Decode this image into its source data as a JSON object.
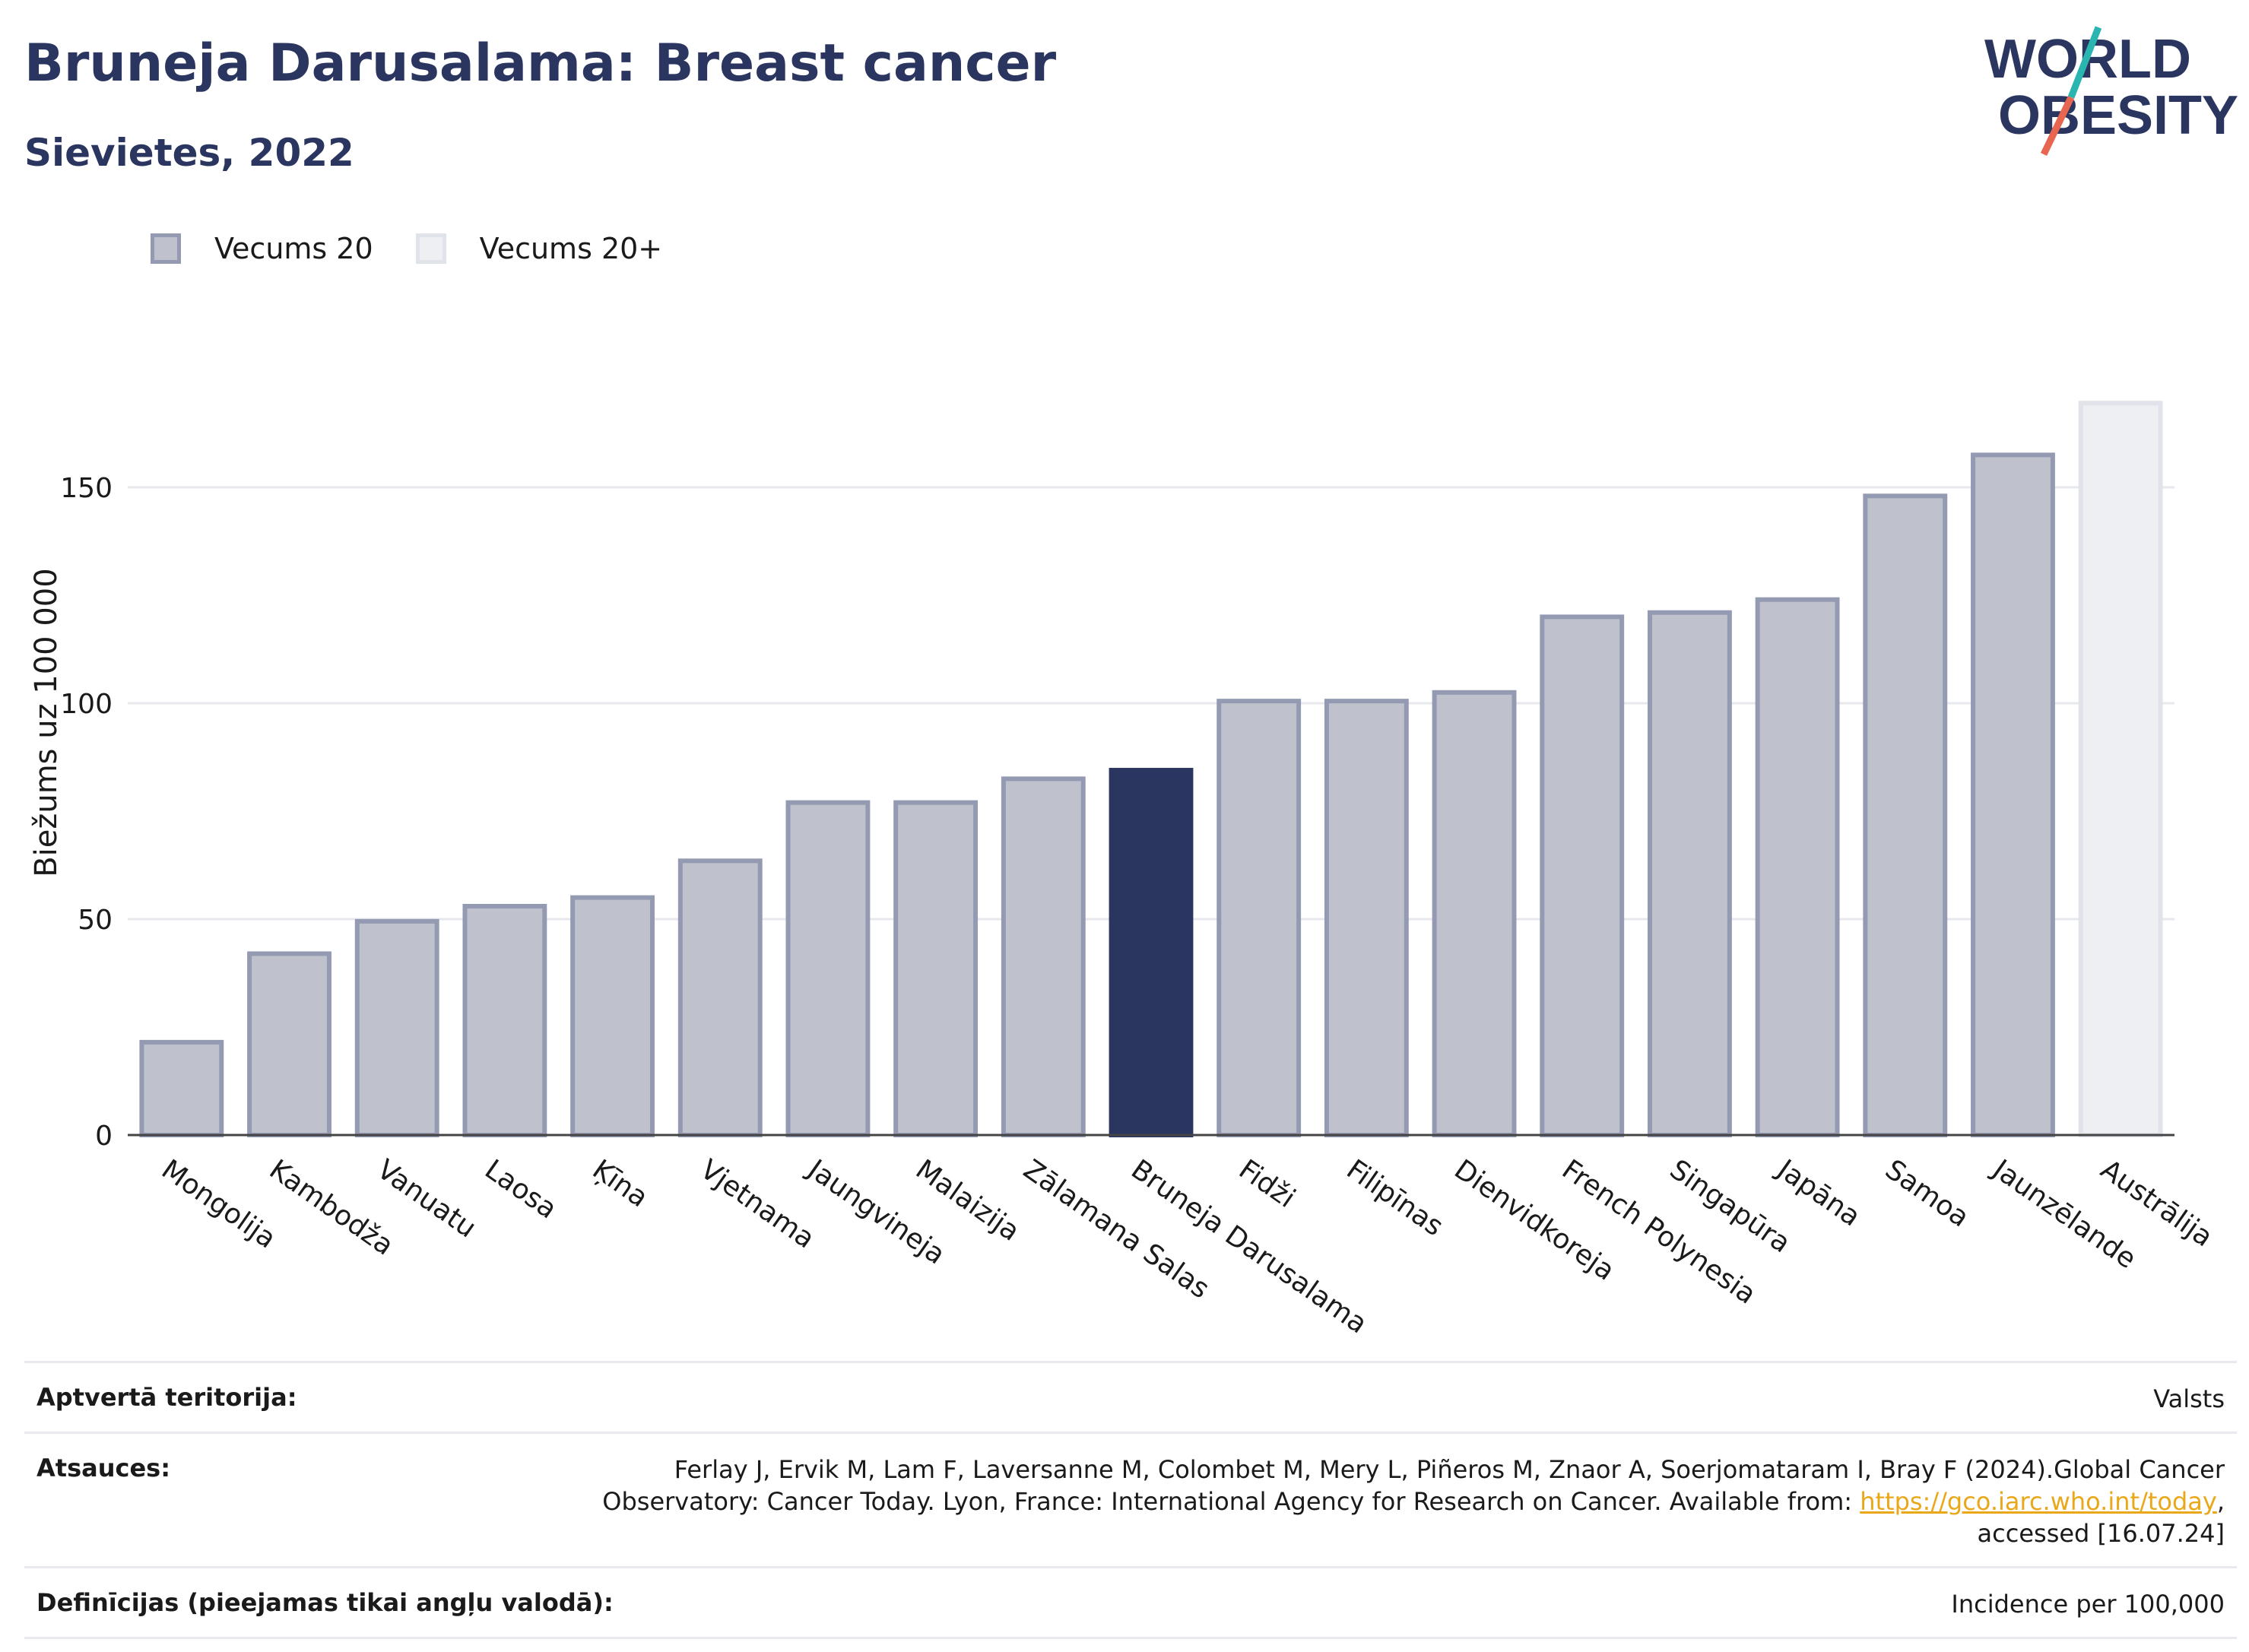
{
  "header": {
    "title": "Bruneja Darusalama: Breast cancer",
    "subtitle": "Sievietes, 2022"
  },
  "logo": {
    "line1": "WORLD",
    "line2": "OBESITY"
  },
  "legend": [
    {
      "label": "Vecums 20"
    },
    {
      "label": "Vecums 20+"
    }
  ],
  "colors": {
    "bar_fill": "#bfc2cd",
    "bar_stroke": "#939ab2",
    "highlight": "#2a3560",
    "faded_fill": "#eeeff3",
    "faded_stroke": "#e1e3ea",
    "grid": "#e6e8ee",
    "link": "#e9a819"
  },
  "chart_data": {
    "type": "bar",
    "ylabel": "Biežums uz 100 000",
    "xlabel": "",
    "ylim": [
      0,
      175
    ],
    "yticks": [
      0,
      50,
      100,
      150
    ],
    "grid": true,
    "legend_position": "top-left",
    "categories": [
      "Mongolija",
      "Kambodža",
      "Vanuatu",
      "Laosa",
      "Ķīna",
      "Vjetnama",
      "Jaungvineja",
      "Malaizija",
      "Zālamana Salas",
      "Bruneja Darusalama",
      "Fidži",
      "Filipīnas",
      "Dienvidkoreja",
      "French Polynesia",
      "Singapūra",
      "Japāna",
      "Samoa",
      "Jaunzēlande",
      "Austrālija"
    ],
    "values": [
      21.5,
      42,
      49.5,
      53,
      55,
      63.5,
      77,
      77,
      82.5,
      84.5,
      100.5,
      100.5,
      102.5,
      120,
      121,
      124,
      148,
      157.5,
      169.5
    ],
    "series_index": [
      0,
      0,
      0,
      0,
      0,
      0,
      0,
      0,
      0,
      0,
      0,
      0,
      0,
      0,
      0,
      0,
      0,
      0,
      1
    ],
    "highlight": "Bruneja Darusalama"
  },
  "footer": {
    "rows": [
      {
        "key": "Aptvertā teritorija:",
        "value": "Valsts"
      },
      {
        "key": "Atsauces:",
        "value_line1": "Ferlay J, Ervik M, Lam F, Laversanne M, Colombet M, Mery L, Piñeros M, Znaor A, Soerjomataram I, Bray F (2024).Global Cancer",
        "value_line2_pre": "Observatory: Cancer Today. Lyon, France: International Agency for Research on Cancer. Available from: ",
        "link": "https://gco.iarc.who.int/today",
        "value_line2_post": ",",
        "value_line3": "accessed [16.07.24]"
      },
      {
        "key": "Definīcijas (pieejamas tikai angļu valodā):",
        "value": "Incidence per 100,000"
      }
    ]
  }
}
